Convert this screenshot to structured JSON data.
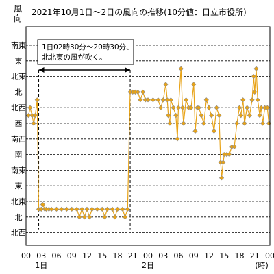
{
  "chart_data": {
    "type": "line",
    "title": "2021年10月1日～2日の風向の推移(10分値：日立市役所)",
    "ylabel": "風向",
    "y_ticks": [
      "南東",
      "東",
      "北東",
      "北",
      "北西",
      "西",
      "南西",
      "南",
      "南東",
      "東",
      "北東",
      "北",
      "北西"
    ],
    "x_ticks": [
      "00",
      "03",
      "06",
      "09",
      "12",
      "15",
      "18",
      "21",
      "00",
      "03",
      "06",
      "09",
      "12",
      "15",
      "18",
      "21",
      "00"
    ],
    "x_unit": "(時)",
    "x_day_labels": [
      {
        "hour": 3,
        "text": "1日"
      },
      {
        "hour": 24,
        "text": "2日"
      }
    ],
    "ylim_index": [
      0,
      12
    ],
    "xlim_hours": [
      0,
      48
    ],
    "grid": "horizontal dashed",
    "series_color": "#e8a317",
    "marker_color": "#8c8c8c",
    "annotation": {
      "line1": "1日02時30分～20時30分、",
      "line2": "北北東の風が吹く。",
      "range_hours": [
        2.5,
        20.5
      ]
    },
    "series": [
      {
        "points": [
          [
            0.5,
            4.5
          ],
          [
            0.8,
            4.0
          ],
          [
            1.2,
            4.5
          ],
          [
            1.5,
            5.0
          ],
          [
            1.8,
            4.5
          ],
          [
            2.2,
            3.5
          ],
          [
            2.5,
            10.5
          ],
          [
            3.0,
            10.5
          ],
          [
            3.3,
            10.2
          ],
          [
            3.7,
            10.5
          ],
          [
            4.0,
            10.5
          ],
          [
            4.5,
            10.5
          ],
          [
            5.0,
            10.5
          ],
          [
            6.0,
            10.5
          ],
          [
            7.0,
            10.5
          ],
          [
            8.0,
            10.5
          ],
          [
            9.0,
            10.5
          ],
          [
            10.0,
            10.5
          ],
          [
            10.5,
            11.0
          ],
          [
            11.0,
            10.5
          ],
          [
            11.5,
            11.0
          ],
          [
            12.0,
            10.5
          ],
          [
            12.5,
            11.0
          ],
          [
            13.0,
            10.5
          ],
          [
            14.0,
            10.5
          ],
          [
            15.0,
            10.5
          ],
          [
            15.5,
            11.0
          ],
          [
            16.0,
            10.5
          ],
          [
            17.0,
            10.5
          ],
          [
            17.5,
            11.0
          ],
          [
            18.0,
            10.5
          ],
          [
            19.0,
            10.5
          ],
          [
            19.5,
            11.0
          ],
          [
            20.0,
            10.5
          ],
          [
            20.5,
            3.0
          ],
          [
            21.0,
            3.0
          ],
          [
            21.5,
            3.0
          ],
          [
            22.0,
            3.0
          ],
          [
            22.5,
            3.5
          ],
          [
            23.0,
            3.0
          ],
          [
            23.5,
            3.5
          ],
          [
            24.0,
            3.5
          ],
          [
            25.0,
            3.5
          ],
          [
            26.0,
            3.5
          ],
          [
            26.5,
            4.0
          ],
          [
            27.0,
            3.5
          ],
          [
            27.5,
            2.5
          ],
          [
            27.8,
            3.5
          ],
          [
            28.0,
            4.5
          ],
          [
            28.3,
            5.0
          ],
          [
            28.5,
            3.5
          ],
          [
            29.0,
            4.0
          ],
          [
            29.5,
            4.5
          ],
          [
            29.8,
            6.0
          ],
          [
            30.0,
            4.0
          ],
          [
            30.5,
            1.5
          ],
          [
            30.8,
            4.0
          ],
          [
            31.0,
            5.0
          ],
          [
            31.5,
            3.5
          ],
          [
            32.0,
            4.0
          ],
          [
            32.5,
            4.0
          ],
          [
            33.0,
            2.5
          ],
          [
            33.3,
            5.5
          ],
          [
            33.7,
            4.0
          ],
          [
            34.0,
            4.0
          ],
          [
            34.5,
            4.5
          ],
          [
            35.0,
            5.0
          ],
          [
            35.5,
            3.5
          ],
          [
            36.0,
            4.0
          ],
          [
            36.5,
            4.5
          ],
          [
            37.0,
            5.5
          ],
          [
            37.5,
            4.0
          ],
          [
            38.0,
            4.5
          ],
          [
            38.3,
            7.5
          ],
          [
            38.5,
            8.5
          ],
          [
            38.8,
            7.5
          ],
          [
            39.0,
            7.0
          ],
          [
            39.5,
            7.0
          ],
          [
            40.0,
            7.0
          ],
          [
            40.5,
            6.5
          ],
          [
            41.0,
            6.5
          ],
          [
            41.5,
            5.0
          ],
          [
            42.0,
            4.0
          ],
          [
            42.3,
            4.5
          ],
          [
            42.7,
            3.5
          ],
          [
            43.0,
            5.0
          ],
          [
            43.5,
            4.0
          ],
          [
            44.0,
            4.5
          ],
          [
            44.5,
            3.5
          ],
          [
            44.8,
            2.0
          ],
          [
            45.0,
            3.0
          ],
          [
            45.3,
            1.5
          ],
          [
            45.6,
            3.5
          ],
          [
            46.0,
            4.5
          ],
          [
            46.3,
            4.0
          ],
          [
            46.6,
            5.0
          ],
          [
            47.0,
            4.0
          ],
          [
            47.5,
            4.0
          ],
          [
            47.8,
            5.0
          ]
        ]
      }
    ]
  }
}
